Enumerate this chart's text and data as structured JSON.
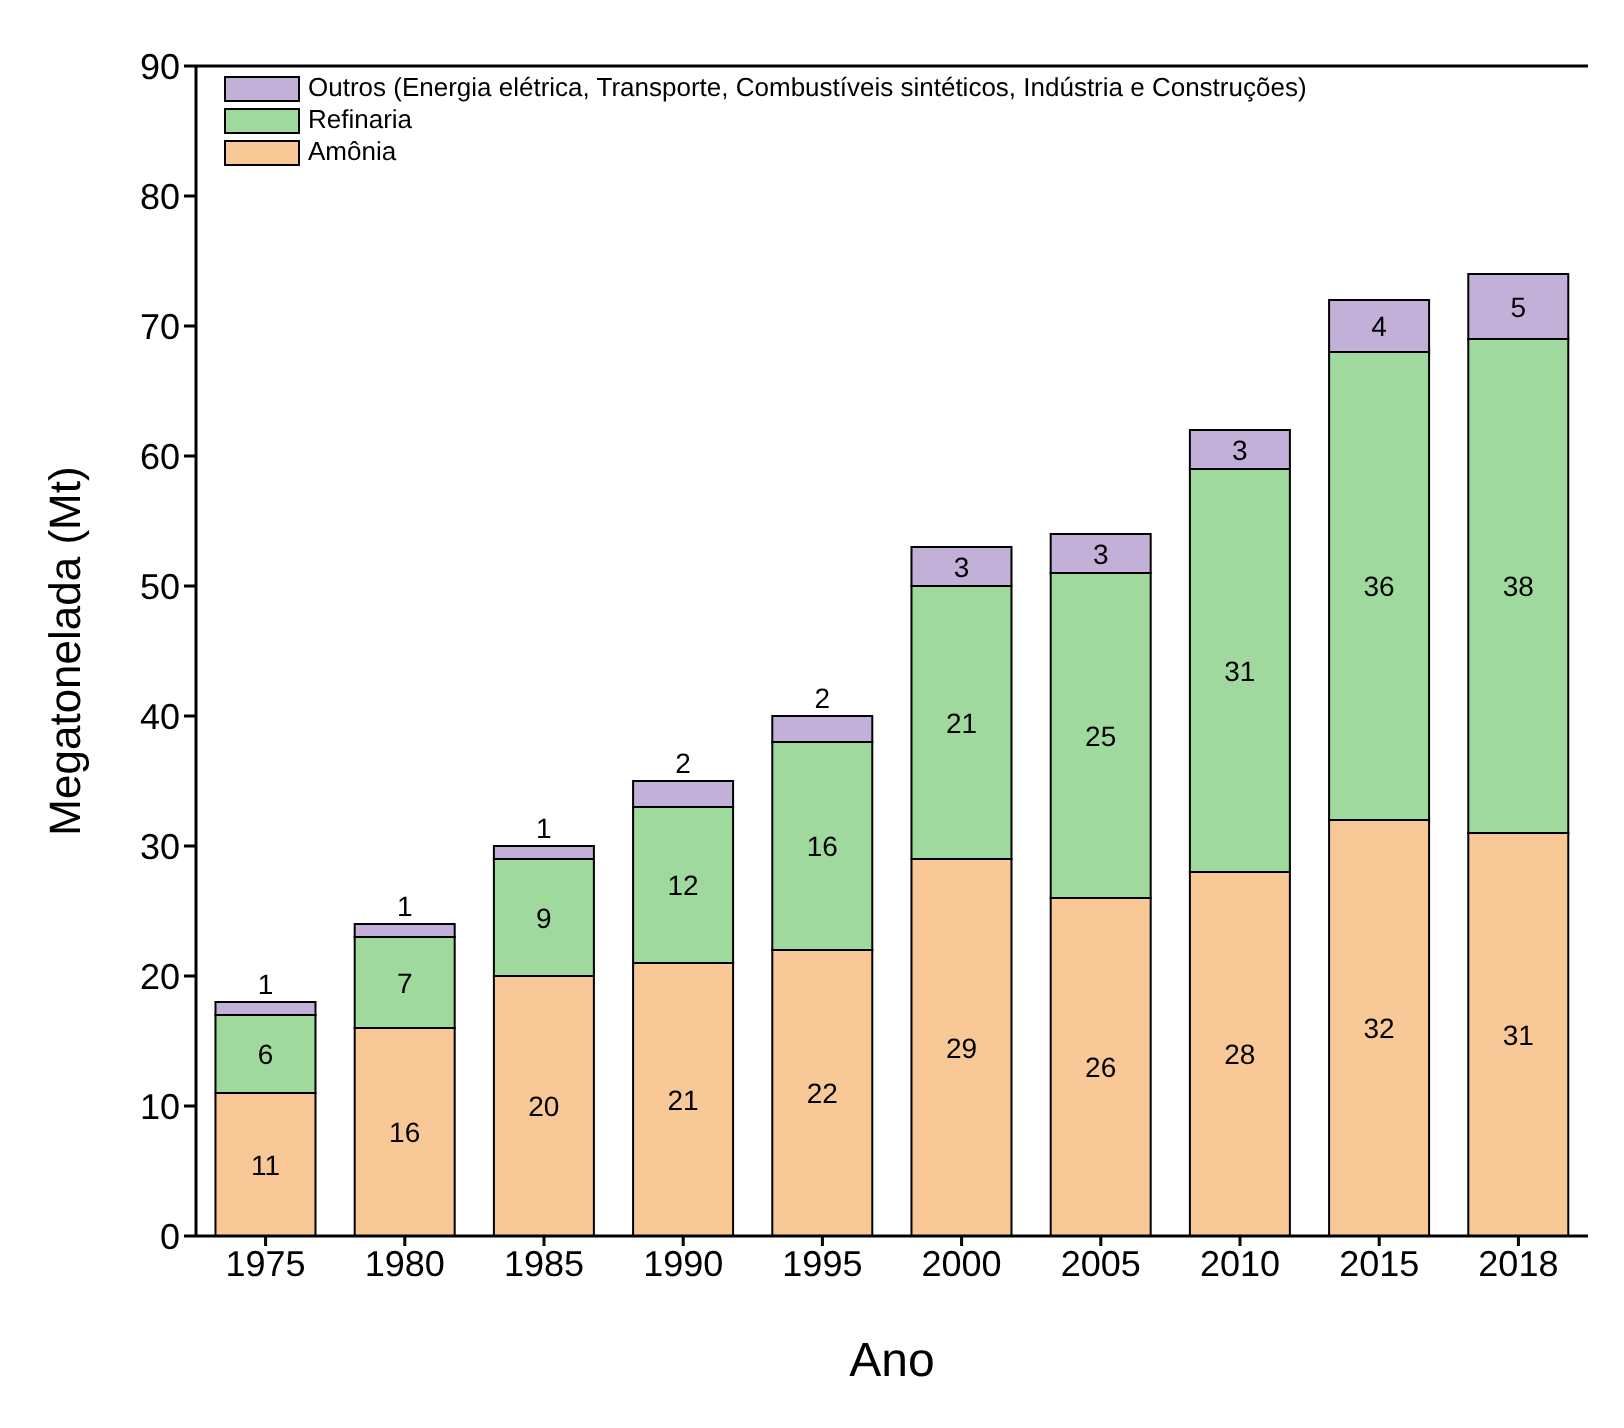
{
  "chart_data": {
    "type": "bar",
    "stacked": true,
    "xlabel": "Ano",
    "ylabel": "Megatonelada (Mt)",
    "categories": [
      "1975",
      "1980",
      "1985",
      "1990",
      "1995",
      "2000",
      "2005",
      "2010",
      "2015",
      "2018"
    ],
    "series": [
      {
        "name": "Amônia",
        "color": "#f9c897",
        "values": [
          11,
          16,
          20,
          21,
          22,
          29,
          26,
          28,
          32,
          31
        ]
      },
      {
        "name": "Refinaria",
        "color": "#a0d99e",
        "values": [
          6,
          7,
          9,
          12,
          16,
          21,
          25,
          31,
          36,
          38
        ]
      },
      {
        "name": "Outros (Energia elétrica, Transporte, Combustíveis sintéticos, Indústria e Construções)",
        "color": "#c2b0d9",
        "values": [
          1,
          1,
          1,
          2,
          2,
          3,
          3,
          3,
          4,
          5
        ]
      }
    ],
    "ylim": [
      0,
      90
    ],
    "yticks": [
      0,
      10,
      20,
      30,
      40,
      50,
      60,
      70,
      80,
      90
    ],
    "grid": false,
    "legend": "top left",
    "data_labels": true
  }
}
